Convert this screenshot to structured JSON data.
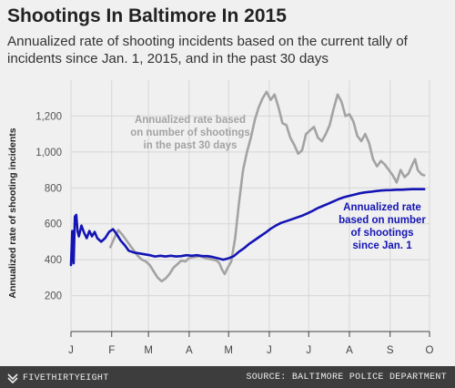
{
  "chart_data": {
    "type": "line",
    "title": "Shootings In Baltimore In 2015",
    "subtitle": "Annualized rate of shooting incidents based on the current tally of incidents since Jan. 1, 2015, and in the past 30 days",
    "ylabel": "Annualized rate of shooting incidents",
    "xlabel": "",
    "ylim": [
      0,
      1400
    ],
    "yticks": [
      200,
      400,
      600,
      800,
      1000,
      1200
    ],
    "ytick_labels": [
      "200",
      "400",
      "600",
      "800",
      "1,000",
      "1,200"
    ],
    "xlim": [
      "2015-01-01",
      "2015-10-01"
    ],
    "xticks": [
      "2015-01-01",
      "2015-02-01",
      "2015-03-01",
      "2015-04-01",
      "2015-05-01",
      "2015-06-01",
      "2015-07-01",
      "2015-08-01",
      "2015-09-01",
      "2015-10-01"
    ],
    "xtick_labels": [
      "J",
      "F",
      "M",
      "A",
      "M",
      "J",
      "J",
      "A",
      "S",
      "O"
    ],
    "grid": true,
    "series": [
      {
        "name": "Annualized rate based on number of shootings in the past 30 days",
        "color": "#a3a3a3",
        "points": [
          [
            "2015-01-31",
            470
          ],
          [
            "2015-02-03",
            520
          ],
          [
            "2015-02-06",
            565
          ],
          [
            "2015-02-09",
            540
          ],
          [
            "2015-02-12",
            510
          ],
          [
            "2015-02-15",
            480
          ],
          [
            "2015-02-18",
            450
          ],
          [
            "2015-02-21",
            420
          ],
          [
            "2015-02-24",
            400
          ],
          [
            "2015-02-27",
            390
          ],
          [
            "2015-03-02",
            370
          ],
          [
            "2015-03-05",
            335
          ],
          [
            "2015-03-08",
            300
          ],
          [
            "2015-03-11",
            280
          ],
          [
            "2015-03-14",
            295
          ],
          [
            "2015-03-17",
            320
          ],
          [
            "2015-03-20",
            355
          ],
          [
            "2015-03-23",
            375
          ],
          [
            "2015-03-26",
            395
          ],
          [
            "2015-03-29",
            390
          ],
          [
            "2015-04-01",
            410
          ],
          [
            "2015-04-05",
            415
          ],
          [
            "2015-04-09",
            420
          ],
          [
            "2015-04-13",
            410
          ],
          [
            "2015-04-16",
            405
          ],
          [
            "2015-04-19",
            400
          ],
          [
            "2015-04-22",
            395
          ],
          [
            "2015-04-24",
            380
          ],
          [
            "2015-04-26",
            345
          ],
          [
            "2015-04-28",
            320
          ],
          [
            "2015-04-30",
            350
          ],
          [
            "2015-05-03",
            390
          ],
          [
            "2015-05-06",
            520
          ],
          [
            "2015-05-09",
            720
          ],
          [
            "2015-05-12",
            900
          ],
          [
            "2015-05-15",
            1000
          ],
          [
            "2015-05-18",
            1080
          ],
          [
            "2015-05-21",
            1180
          ],
          [
            "2015-05-24",
            1250
          ],
          [
            "2015-05-27",
            1300
          ],
          [
            "2015-05-30",
            1335
          ],
          [
            "2015-06-02",
            1290
          ],
          [
            "2015-06-05",
            1320
          ],
          [
            "2015-06-08",
            1250
          ],
          [
            "2015-06-11",
            1160
          ],
          [
            "2015-06-14",
            1150
          ],
          [
            "2015-06-17",
            1080
          ],
          [
            "2015-06-20",
            1040
          ],
          [
            "2015-06-23",
            990
          ],
          [
            "2015-06-26",
            1010
          ],
          [
            "2015-06-29",
            1100
          ],
          [
            "2015-07-02",
            1120
          ],
          [
            "2015-07-05",
            1140
          ],
          [
            "2015-07-08",
            1080
          ],
          [
            "2015-07-11",
            1060
          ],
          [
            "2015-07-14",
            1100
          ],
          [
            "2015-07-17",
            1150
          ],
          [
            "2015-07-20",
            1240
          ],
          [
            "2015-07-23",
            1320
          ],
          [
            "2015-07-26",
            1280
          ],
          [
            "2015-07-29",
            1200
          ],
          [
            "2015-08-01",
            1210
          ],
          [
            "2015-08-04",
            1170
          ],
          [
            "2015-08-07",
            1090
          ],
          [
            "2015-08-10",
            1060
          ],
          [
            "2015-08-13",
            1100
          ],
          [
            "2015-08-16",
            1050
          ],
          [
            "2015-08-19",
            960
          ],
          [
            "2015-08-22",
            920
          ],
          [
            "2015-08-25",
            950
          ],
          [
            "2015-08-28",
            930
          ],
          [
            "2015-08-31",
            900
          ],
          [
            "2015-09-03",
            870
          ],
          [
            "2015-09-06",
            830
          ],
          [
            "2015-09-09",
            900
          ],
          [
            "2015-09-12",
            860
          ],
          [
            "2015-09-15",
            880
          ],
          [
            "2015-09-18",
            930
          ],
          [
            "2015-09-20",
            960
          ],
          [
            "2015-09-22",
            900
          ],
          [
            "2015-09-25",
            875
          ],
          [
            "2015-09-27",
            870
          ]
        ]
      },
      {
        "name": "Annualized rate based on number of shootings since Jan. 1",
        "color": "#1414b4",
        "points": [
          [
            "2015-01-01",
            370
          ],
          [
            "2015-01-02",
            560
          ],
          [
            "2015-01-03",
            380
          ],
          [
            "2015-01-04",
            640
          ],
          [
            "2015-01-05",
            650
          ],
          [
            "2015-01-06",
            560
          ],
          [
            "2015-01-07",
            530
          ],
          [
            "2015-01-09",
            590
          ],
          [
            "2015-01-11",
            550
          ],
          [
            "2015-01-13",
            520
          ],
          [
            "2015-01-15",
            560
          ],
          [
            "2015-01-17",
            530
          ],
          [
            "2015-01-19",
            555
          ],
          [
            "2015-01-21",
            520
          ],
          [
            "2015-01-24",
            500
          ],
          [
            "2015-01-27",
            520
          ],
          [
            "2015-01-30",
            555
          ],
          [
            "2015-02-02",
            570
          ],
          [
            "2015-02-05",
            540
          ],
          [
            "2015-02-08",
            505
          ],
          [
            "2015-02-11",
            480
          ],
          [
            "2015-02-14",
            450
          ],
          [
            "2015-02-18",
            440
          ],
          [
            "2015-02-22",
            435
          ],
          [
            "2015-02-26",
            430
          ],
          [
            "2015-03-02",
            425
          ],
          [
            "2015-03-06",
            418
          ],
          [
            "2015-03-10",
            422
          ],
          [
            "2015-03-14",
            418
          ],
          [
            "2015-03-18",
            422
          ],
          [
            "2015-03-22",
            418
          ],
          [
            "2015-03-26",
            420
          ],
          [
            "2015-03-30",
            425
          ],
          [
            "2015-04-03",
            422
          ],
          [
            "2015-04-07",
            425
          ],
          [
            "2015-04-11",
            420
          ],
          [
            "2015-04-15",
            420
          ],
          [
            "2015-04-19",
            415
          ],
          [
            "2015-04-23",
            408
          ],
          [
            "2015-04-27",
            400
          ],
          [
            "2015-05-01",
            408
          ],
          [
            "2015-05-05",
            420
          ],
          [
            "2015-05-09",
            445
          ],
          [
            "2015-05-13",
            465
          ],
          [
            "2015-05-17",
            490
          ],
          [
            "2015-05-21",
            510
          ],
          [
            "2015-05-25",
            530
          ],
          [
            "2015-05-29",
            550
          ],
          [
            "2015-06-02",
            572
          ],
          [
            "2015-06-06",
            590
          ],
          [
            "2015-06-10",
            605
          ],
          [
            "2015-06-14",
            615
          ],
          [
            "2015-06-18",
            625
          ],
          [
            "2015-06-22",
            635
          ],
          [
            "2015-06-26",
            645
          ],
          [
            "2015-06-30",
            658
          ],
          [
            "2015-07-04",
            672
          ],
          [
            "2015-07-08",
            688
          ],
          [
            "2015-07-12",
            700
          ],
          [
            "2015-07-16",
            712
          ],
          [
            "2015-07-20",
            725
          ],
          [
            "2015-07-24",
            738
          ],
          [
            "2015-07-28",
            748
          ],
          [
            "2015-08-01",
            756
          ],
          [
            "2015-08-05",
            763
          ],
          [
            "2015-08-09",
            770
          ],
          [
            "2015-08-13",
            775
          ],
          [
            "2015-08-17",
            778
          ],
          [
            "2015-08-21",
            782
          ],
          [
            "2015-08-25",
            785
          ],
          [
            "2015-08-29",
            787
          ],
          [
            "2015-09-02",
            788
          ],
          [
            "2015-09-06",
            790
          ],
          [
            "2015-09-10",
            790
          ],
          [
            "2015-09-14",
            792
          ],
          [
            "2015-09-18",
            793
          ],
          [
            "2015-09-22",
            793
          ],
          [
            "2015-09-27",
            793
          ]
        ]
      }
    ],
    "annotations": [
      {
        "series": 0,
        "lines": [
          "Annualized rate based",
          "on number of shootings",
          "in the past 30 days"
        ]
      },
      {
        "series": 1,
        "lines": [
          "Annualized rate",
          "based on number",
          "of shootings",
          "since Jan. 1"
        ]
      }
    ]
  },
  "footer": {
    "brand": "FIVETHIRTYEIGHT",
    "source": "SOURCE: BALTIMORE POLICE DEPARTMENT"
  },
  "icons": {
    "brand": "fivethirtyeight-logo-icon"
  }
}
